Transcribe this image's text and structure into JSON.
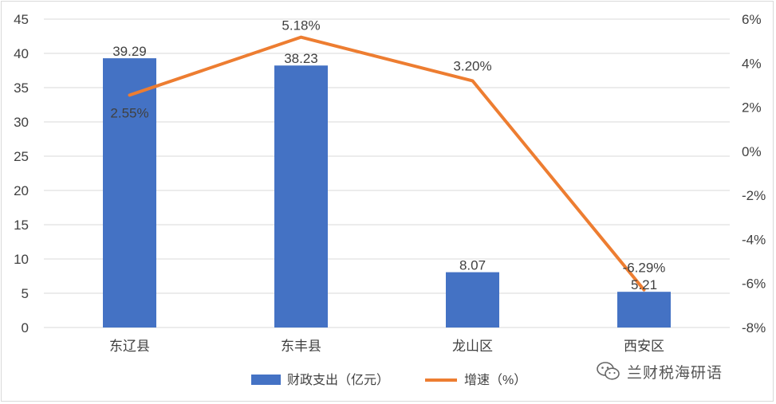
{
  "chart_data": {
    "type": "bar",
    "categories": [
      "东辽县",
      "东丰县",
      "龙山区",
      "西安区"
    ],
    "series": [
      {
        "name": "财政支出（亿元）",
        "type": "bar",
        "axis": "left",
        "values": [
          39.29,
          38.23,
          8.07,
          5.21
        ],
        "labels": [
          "39.29",
          "38.23",
          "8.07",
          "5.21"
        ],
        "color": "#4472C4"
      },
      {
        "name": "增速（%）",
        "type": "line",
        "axis": "right",
        "values": [
          2.55,
          5.18,
          3.2,
          -6.29
        ],
        "labels": [
          "2.55%",
          "5.18%",
          "3.20%",
          "-6.29%"
        ],
        "color": "#ED7D31"
      }
    ],
    "y_left": {
      "min": 0,
      "max": 45,
      "step": 5,
      "ticks": [
        "0",
        "5",
        "10",
        "15",
        "20",
        "25",
        "30",
        "35",
        "40",
        "45"
      ]
    },
    "y_right": {
      "min": -8,
      "max": 6,
      "step": 2,
      "ticks": [
        "-8%",
        "-6%",
        "-4%",
        "-2%",
        "0%",
        "2%",
        "4%",
        "6%"
      ]
    },
    "grid": true,
    "legend_position": "bottom"
  },
  "watermark": {
    "text": "兰财税海研语",
    "icon": "wechat-icon"
  }
}
